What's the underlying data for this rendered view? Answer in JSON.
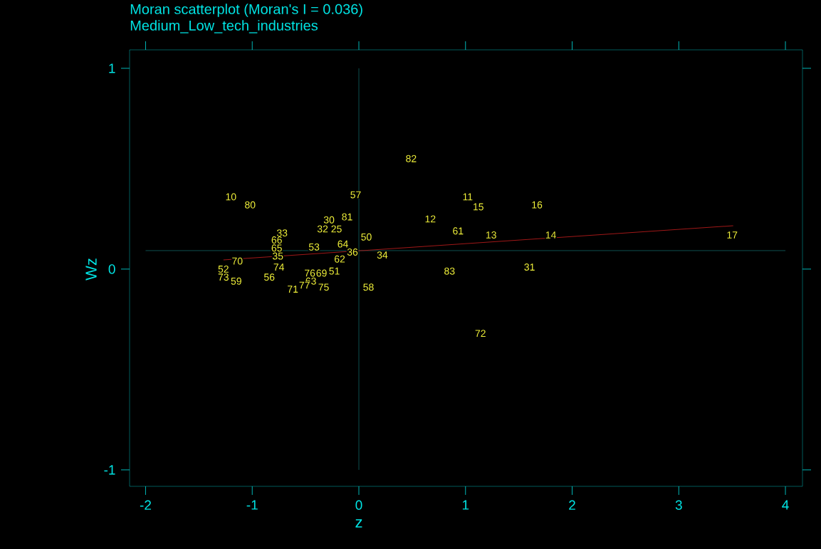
{
  "chart_data": {
    "type": "scatter",
    "title": "Moran scatterplot (Moran's I = 0.036)",
    "subtitle": "Medium_Low_tech_industries",
    "xlabel": "z",
    "ylabel": "Wz",
    "xlim": [
      -2.15,
      4.16
    ],
    "ylim": [
      -1.082,
      1.092
    ],
    "xticks": [
      -2,
      -1,
      0,
      1,
      2,
      3,
      4
    ],
    "yticks": [
      -1,
      0,
      1
    ],
    "grid": false,
    "series": [
      {
        "type": "line",
        "color": "#a01818",
        "x": [
          -1.27,
          3.51
        ],
        "values": [
          0.046,
          0.216
        ]
      }
    ],
    "annotations": [
      {
        "text": "10",
        "x": -1.2,
        "y": 0.36
      },
      {
        "text": "80",
        "x": -1.02,
        "y": 0.32
      },
      {
        "text": "57",
        "x": -0.03,
        "y": 0.37
      },
      {
        "text": "81",
        "x": -0.11,
        "y": 0.26
      },
      {
        "text": "30",
        "x": -0.28,
        "y": 0.245
      },
      {
        "text": "32",
        "x": -0.34,
        "y": 0.2
      },
      {
        "text": "25",
        "x": -0.21,
        "y": 0.2
      },
      {
        "text": "33",
        "x": -0.72,
        "y": 0.18
      },
      {
        "text": "66",
        "x": -0.77,
        "y": 0.145
      },
      {
        "text": "65",
        "x": -0.77,
        "y": 0.105
      },
      {
        "text": "53",
        "x": -0.42,
        "y": 0.11
      },
      {
        "text": "64",
        "x": -0.15,
        "y": 0.125
      },
      {
        "text": "50",
        "x": 0.07,
        "y": 0.16
      },
      {
        "text": "36",
        "x": -0.06,
        "y": 0.085
      },
      {
        "text": "35",
        "x": -0.76,
        "y": 0.065
      },
      {
        "text": "34",
        "x": 0.22,
        "y": 0.07
      },
      {
        "text": "62",
        "x": -0.18,
        "y": 0.05
      },
      {
        "text": "70",
        "x": -1.14,
        "y": 0.04
      },
      {
        "text": "74",
        "x": -0.75,
        "y": 0.01
      },
      {
        "text": "52",
        "x": -1.27,
        "y": 0.0
      },
      {
        "text": "73",
        "x": -1.27,
        "y": -0.04
      },
      {
        "text": "59",
        "x": -1.15,
        "y": -0.06
      },
      {
        "text": "56",
        "x": -0.84,
        "y": -0.04
      },
      {
        "text": "76",
        "x": -0.46,
        "y": -0.02
      },
      {
        "text": "69",
        "x": -0.35,
        "y": -0.02
      },
      {
        "text": "51",
        "x": -0.23,
        "y": -0.01
      },
      {
        "text": "63",
        "x": -0.45,
        "y": -0.06
      },
      {
        "text": "77",
        "x": -0.51,
        "y": -0.08
      },
      {
        "text": "71",
        "x": -0.62,
        "y": -0.1
      },
      {
        "text": "75",
        "x": -0.33,
        "y": -0.09
      },
      {
        "text": "58",
        "x": 0.09,
        "y": -0.09
      },
      {
        "text": "82",
        "x": 0.49,
        "y": 0.55
      },
      {
        "text": "11",
        "x": 1.02,
        "y": 0.36
      },
      {
        "text": "15",
        "x": 1.12,
        "y": 0.31
      },
      {
        "text": "16",
        "x": 1.67,
        "y": 0.32
      },
      {
        "text": "12",
        "x": 0.67,
        "y": 0.25
      },
      {
        "text": "61",
        "x": 0.93,
        "y": 0.19
      },
      {
        "text": "13",
        "x": 1.24,
        "y": 0.17
      },
      {
        "text": "14",
        "x": 1.8,
        "y": 0.17
      },
      {
        "text": "17",
        "x": 3.5,
        "y": 0.17
      },
      {
        "text": "83",
        "x": 0.85,
        "y": -0.01
      },
      {
        "text": "31",
        "x": 1.6,
        "y": 0.01
      },
      {
        "text": "72",
        "x": 1.14,
        "y": -0.32
      }
    ],
    "ref_lines": [
      {
        "axis": "x",
        "value": 0,
        "color": "#20c8c8"
      },
      {
        "axis": "y",
        "value": 0.092,
        "color": "#20c8c8"
      }
    ]
  }
}
